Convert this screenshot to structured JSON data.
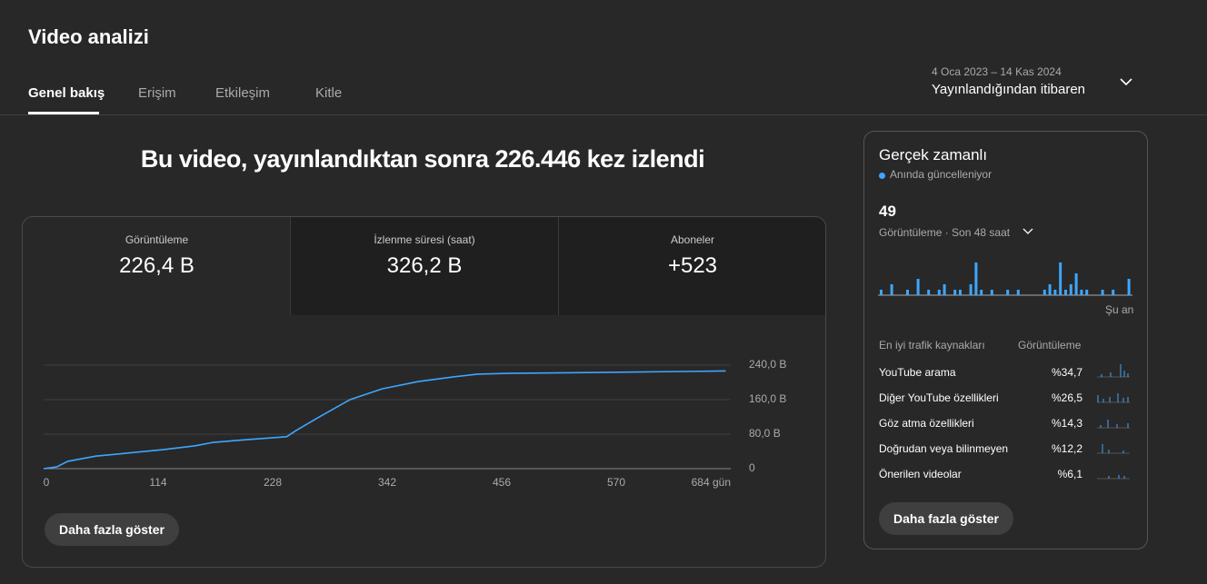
{
  "header": {
    "title": "Video analizi",
    "tabs": [
      "Genel bakış",
      "Erişim",
      "Etkileşim",
      "Kitle"
    ],
    "date_range": "4 Oca 2023 – 14 Kas 2024",
    "period": "Yayınlandığından itibaren"
  },
  "headline": "Bu video, yayınlandıktan sonra 226.446 kez izlendi",
  "metrics": [
    {
      "label": "Görüntüleme",
      "value": "226,4 B"
    },
    {
      "label": "İzlenme süresi (saat)",
      "value": "326,2 B"
    },
    {
      "label": "Aboneler",
      "value": "+523"
    }
  ],
  "chart_data": {
    "type": "line",
    "color": "#3ea6ff",
    "grid": true,
    "x": [
      0,
      13,
      24,
      52,
      92,
      119,
      151,
      169,
      201,
      242,
      251,
      273,
      305,
      337,
      373,
      409,
      432,
      463,
      553,
      679
    ],
    "values": [
      0,
      4,
      17,
      29,
      38,
      44,
      53,
      61,
      67,
      74,
      88,
      118,
      160,
      185,
      202,
      213,
      219,
      221,
      223,
      226.4
    ],
    "xlim": [
      0,
      684
    ],
    "ylim": [
      0,
      240
    ],
    "xticks": [
      0,
      114,
      228,
      342,
      456,
      570,
      {
        "value": 684,
        "label": "684 gün"
      }
    ],
    "yticks": [
      0,
      {
        "value": 80,
        "label": "80,0 B"
      },
      {
        "value": 160,
        "label": "160,0 B"
      },
      {
        "value": 240,
        "label": "240,0 B"
      }
    ]
  },
  "more_button": "Daha fazla göster",
  "realtime": {
    "title": "Gerçek zamanlı",
    "status": "Anında güncelleniyor",
    "count": "49",
    "metric": "Görüntüleme · Son 48 saat",
    "now": "Şu an",
    "bars": [
      1,
      0,
      2,
      0,
      0,
      1,
      0,
      3,
      0,
      1,
      0,
      1,
      2,
      0,
      1,
      1,
      0,
      2,
      6,
      1,
      0,
      1,
      0,
      0,
      1,
      0,
      1,
      0,
      0,
      0,
      0,
      1,
      2,
      1,
      6,
      1,
      2,
      4,
      1,
      1,
      0,
      0,
      1,
      0,
      1,
      0,
      0,
      3
    ],
    "sources_header": "En iyi trafik kaynakları",
    "views_header": "Görüntüleme",
    "sources": [
      {
        "name": "YouTube arama",
        "value": "%34,7"
      },
      {
        "name": "Diğer YouTube özellikleri",
        "value": "%26,5"
      },
      {
        "name": "Göz atma özellikleri",
        "value": "%14,3"
      },
      {
        "name": "Doğrudan veya bilinmeyen",
        "value": "%12,2"
      },
      {
        "name": "Önerilen videolar",
        "value": "%6,1"
      }
    ],
    "more_button": "Daha fazla göster"
  }
}
